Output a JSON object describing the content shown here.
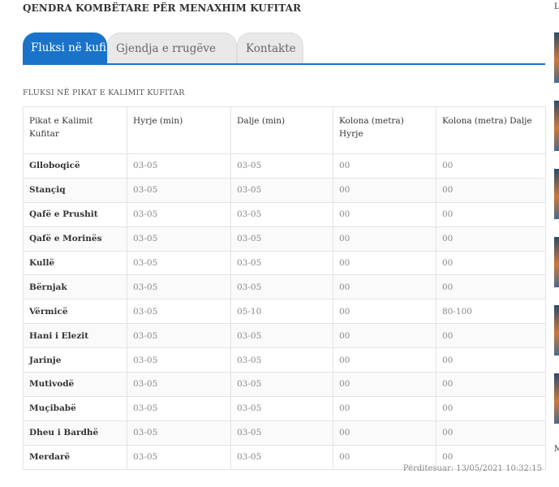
{
  "header": {
    "title": "QENDRA KOMBËTARE PËR MENAXHIM KUFITAR"
  },
  "tabs": [
    {
      "label": "Fluksi në kufi",
      "active": true
    },
    {
      "label": "Gjendja e rrugëve",
      "active": false
    },
    {
      "label": "Kontakte",
      "active": false
    }
  ],
  "section": {
    "title": "FLUKSI NË PIKAT E KALIMIT KUFITAR"
  },
  "table": {
    "headers": [
      "Pikat e Kalimit Kufitar",
      "Hyrje (min)",
      "Dalje (min)",
      "Kolona (metra) Hyrje",
      "Kolona (metra) Dalje"
    ],
    "rows": [
      [
        "Glloboqicë",
        "03-05",
        "03-05",
        "00",
        "00"
      ],
      [
        "Stançiq",
        "03-05",
        "03-05",
        "00",
        "00"
      ],
      [
        "Qafë e Prushit",
        "03-05",
        "03-05",
        "00",
        "00"
      ],
      [
        "Qafë e Morinës",
        "03-05",
        "03-05",
        "00",
        "00"
      ],
      [
        "Kullë",
        "03-05",
        "03-05",
        "00",
        "00"
      ],
      [
        "Bërnjak",
        "03-05",
        "03-05",
        "00",
        "00"
      ],
      [
        "Vërmicë",
        "03-05",
        "05-10",
        "00",
        "80-100"
      ],
      [
        "Hani i Elezit",
        "03-05",
        "03-05",
        "00",
        "00"
      ],
      [
        "Jarinje",
        "03-05",
        "03-05",
        "00",
        "00"
      ],
      [
        "Mutivodë",
        "03-05",
        "03-05",
        "00",
        "00"
      ],
      [
        "Muçibabë",
        "03-05",
        "03-05",
        "00",
        "00"
      ],
      [
        "Dheu i Bardhë",
        "03-05",
        "03-05",
        "00",
        "00"
      ],
      [
        "Merdarë",
        "03-05",
        "03-05",
        "00",
        "00"
      ]
    ]
  },
  "footer": {
    "updated": "Përditesuar: 13/05/2021 10:32:15"
  },
  "sidebar": {
    "letter_top": "L",
    "letter_bottom": "M"
  },
  "colors": {
    "accent": "#1a73c8",
    "tab_inactive": "#e9e9e9"
  }
}
